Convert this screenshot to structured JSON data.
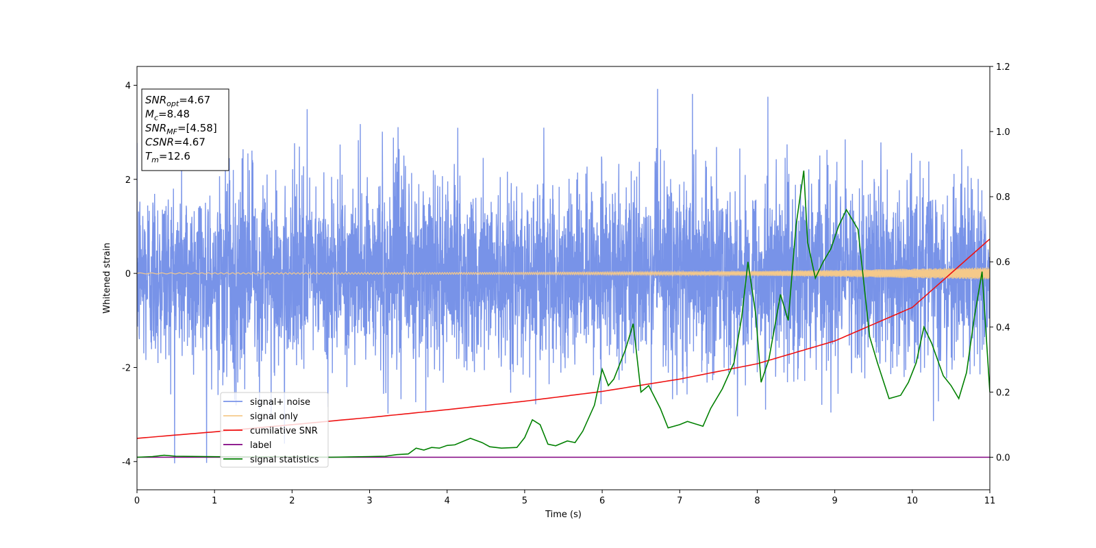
{
  "chart_data": {
    "type": "line",
    "xlabel": "Time (s)",
    "ylabel": "Whitened strain",
    "xlim": [
      0,
      11
    ],
    "ylim": [
      -4.6,
      4.4
    ],
    "y2lim": [
      -0.1,
      1.2
    ],
    "x_ticks": [
      0,
      1,
      2,
      3,
      4,
      5,
      6,
      7,
      8,
      9,
      10,
      11
    ],
    "y_ticks": [
      -4,
      -2,
      0,
      2,
      4
    ],
    "y2_ticks": [
      "0.0",
      "0.2",
      "0.4",
      "0.6",
      "0.8",
      "1.0",
      "1.2"
    ],
    "grid": false,
    "legend_position": "lower-left",
    "annotation": {
      "lines": [
        {
          "sym": "SNR",
          "sub": "opt",
          "value": "=4.67"
        },
        {
          "sym": "M",
          "sub": "c",
          "value": "=8.48"
        },
        {
          "sym": "SNR",
          "sub": "MF",
          "value": "=[4.58]"
        },
        {
          "sym": "CSNR",
          "sub": "",
          "value": "=4.67"
        },
        {
          "sym": "T",
          "sub": "m",
          "value": "=12.6"
        }
      ]
    },
    "series": [
      {
        "name": "signal+ noise",
        "axis": "left",
        "color": "#7893e8",
        "description": "noisy whitened strain, roughly zero-mean, amplitude about ±3 with spikes to ±4",
        "noise_envelope": [
          -4.1,
          4.05
        ]
      },
      {
        "name": "signal only",
        "axis": "left",
        "color": "#f5c98a",
        "description": "chirp signal growing from ~0 amplitude",
        "x": [
          0,
          2,
          4,
          6,
          8,
          9,
          10,
          11
        ],
        "amplitude": [
          0.01,
          0.015,
          0.02,
          0.03,
          0.05,
          0.07,
          0.1,
          0.13
        ]
      },
      {
        "name": "cumilative SNR",
        "axis": "right",
        "color": "#ee1111",
        "x": [
          0,
          1,
          2,
          3,
          4,
          5,
          6,
          7,
          8,
          9,
          10,
          11
        ],
        "y": [
          0.058,
          0.078,
          0.1,
          0.122,
          0.146,
          0.172,
          0.202,
          0.24,
          0.287,
          0.357,
          0.46,
          0.67
        ]
      },
      {
        "name": "label",
        "axis": "right",
        "color": "#800080",
        "x": [
          0,
          11
        ],
        "y": [
          0,
          0
        ]
      },
      {
        "name": "signal statistics",
        "axis": "right",
        "color": "#008000",
        "x": [
          0,
          0.2,
          0.35,
          0.5,
          1.0,
          1.5,
          2.0,
          2.5,
          3.0,
          3.2,
          3.35,
          3.5,
          3.6,
          3.7,
          3.8,
          3.9,
          4.0,
          4.1,
          4.3,
          4.45,
          4.55,
          4.7,
          4.9,
          5.0,
          5.1,
          5.2,
          5.3,
          5.4,
          5.55,
          5.65,
          5.75,
          5.9,
          6.0,
          6.08,
          6.15,
          6.3,
          6.4,
          6.5,
          6.6,
          6.75,
          6.85,
          7.0,
          7.1,
          7.3,
          7.4,
          7.55,
          7.7,
          7.8,
          7.88,
          7.98,
          8.05,
          8.15,
          8.3,
          8.4,
          8.5,
          8.6,
          8.65,
          8.75,
          8.85,
          8.95,
          9.05,
          9.15,
          9.3,
          9.45,
          9.55,
          9.7,
          9.85,
          9.95,
          10.05,
          10.15,
          10.25,
          10.4,
          10.5,
          10.6,
          10.7,
          10.8,
          10.9,
          11.0
        ],
        "y": [
          0.0,
          0.002,
          0.006,
          0.003,
          0.0015,
          0.001,
          0.0015,
          0.0,
          0.002,
          0.003,
          0.008,
          0.01,
          0.028,
          0.022,
          0.03,
          0.028,
          0.036,
          0.038,
          0.058,
          0.045,
          0.032,
          0.028,
          0.03,
          0.06,
          0.115,
          0.1,
          0.04,
          0.035,
          0.05,
          0.045,
          0.08,
          0.16,
          0.27,
          0.22,
          0.24,
          0.33,
          0.41,
          0.2,
          0.22,
          0.15,
          0.09,
          0.1,
          0.11,
          0.095,
          0.15,
          0.21,
          0.29,
          0.43,
          0.6,
          0.44,
          0.23,
          0.3,
          0.5,
          0.42,
          0.71,
          0.88,
          0.66,
          0.55,
          0.6,
          0.64,
          0.71,
          0.76,
          0.7,
          0.37,
          0.29,
          0.18,
          0.19,
          0.23,
          0.29,
          0.4,
          0.35,
          0.25,
          0.22,
          0.18,
          0.26,
          0.43,
          0.57,
          0.2
        ]
      }
    ]
  }
}
